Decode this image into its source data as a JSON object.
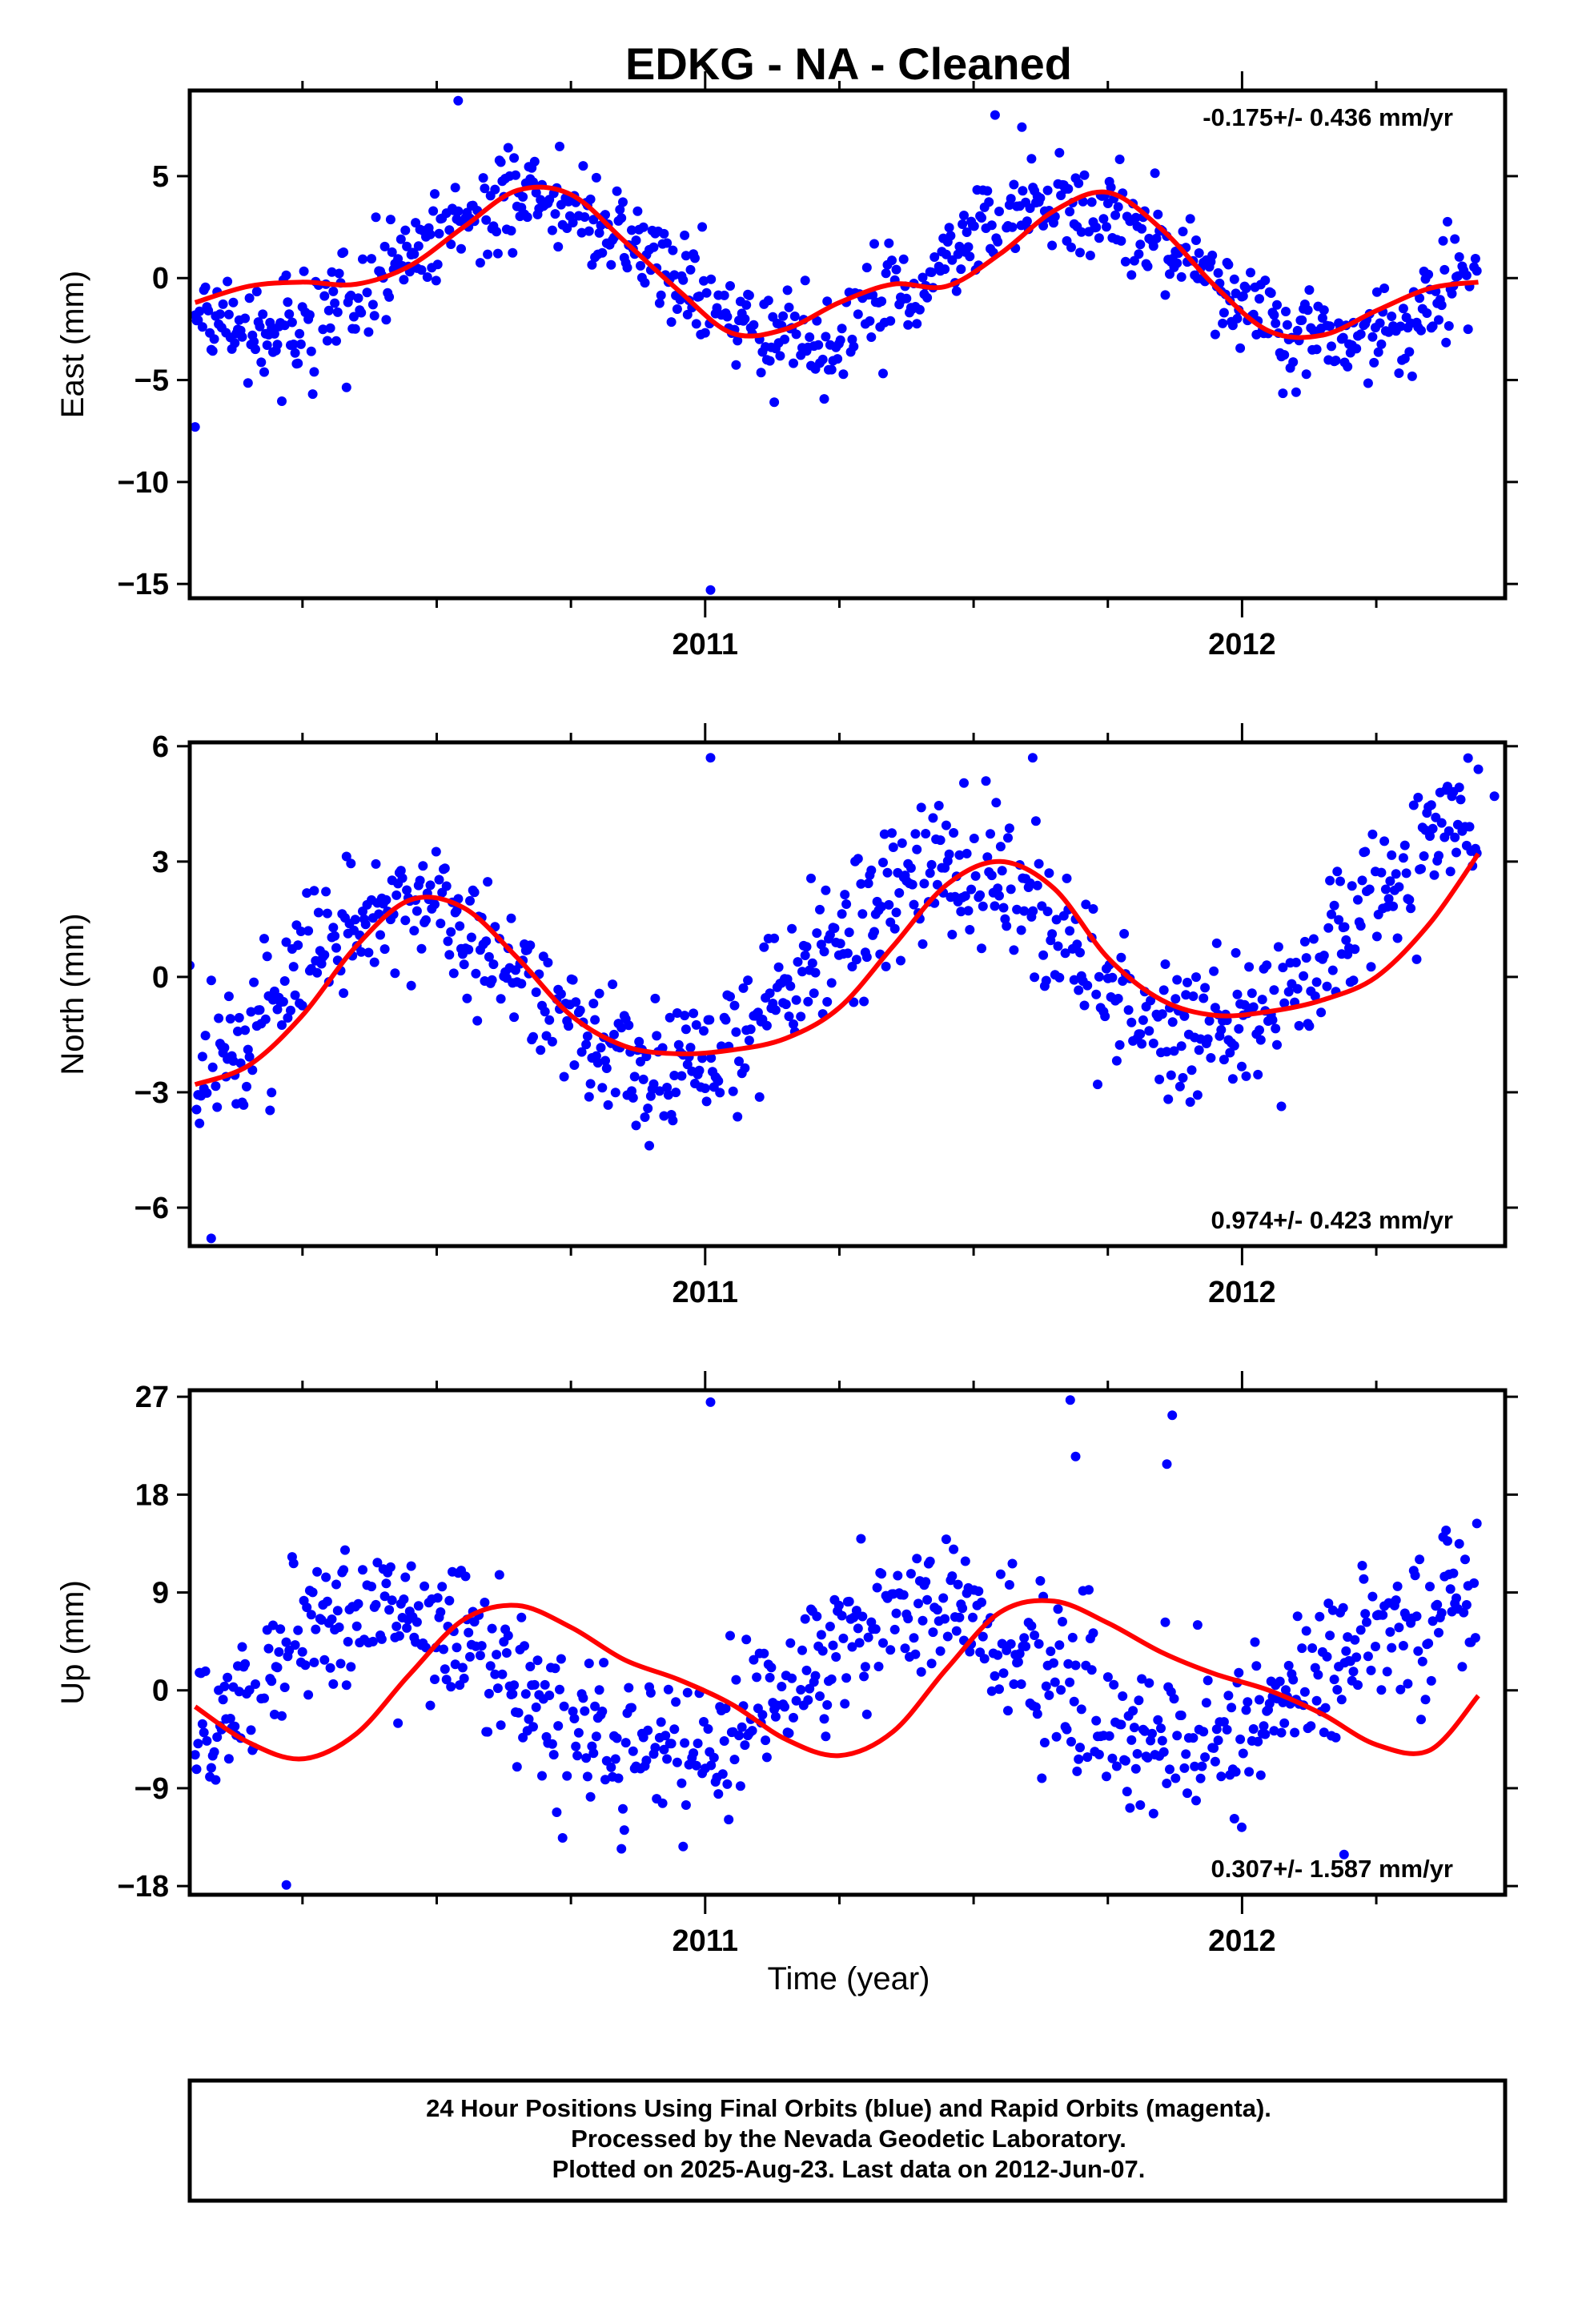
{
  "title": "EDKG  - NA - Cleaned",
  "xlabel": "Time (year)",
  "colors": {
    "points": "#0000ff",
    "fit": "#ff0000",
    "axes": "#000000"
  },
  "footer": {
    "lines": [
      "24 Hour Positions Using Final Orbits (blue) and Rapid Orbits (magenta).",
      "Processed by the Nevada Geodetic Laboratory.",
      "Plotted on 2025-Aug-23. Last data on 2012-Jun-07."
    ]
  },
  "chart_data": [
    {
      "type": "scatter",
      "component": "east",
      "ylabel": "East (mm)",
      "rate_label": "-0.175+/- 0.436 mm/yr",
      "rate_position": "top-right",
      "xlim": [
        2010.04,
        2012.49
      ],
      "ylim": [
        -15.7,
        9.2
      ],
      "yticks": [
        5,
        0,
        -5,
        -10,
        -15
      ],
      "ytick_labels": [
        "5",
        "0",
        "−5",
        "−10",
        "−15"
      ],
      "xticks": [
        2011,
        2012
      ],
      "xtick_labels": [
        "2011",
        "2012"
      ],
      "xminor": [
        2010.25,
        2010.5,
        2010.75,
        2011.25,
        2011.5,
        2011.75,
        2012.25
      ],
      "seasonal_fit": {
        "offset": 0.4,
        "rate": -0.175,
        "ref_epoch": 2011.2,
        "annual_cos": -1.6,
        "annual_sin": -2.88,
        "semiannual_cos": 0.0,
        "semiannual_sin": 0.0,
        "noise_sigma": 1.2
      },
      "outliers": [
        [
          2010.05,
          -7.3
        ],
        [
          2011.01,
          -15.3
        ],
        [
          2010.54,
          8.7
        ],
        [
          2011.54,
          8.0
        ],
        [
          2011.59,
          7.4
        ]
      ],
      "fit_curve_x": [
        2010.05,
        2010.15,
        2010.25,
        2010.35,
        2010.45,
        2010.55,
        2010.65,
        2010.75,
        2010.85,
        2010.95,
        2011.05,
        2011.15,
        2011.25,
        2011.35,
        2011.45,
        2011.55,
        2011.65,
        2011.75,
        2011.85,
        2011.95,
        2012.05,
        2012.15,
        2012.25,
        2012.35,
        2012.44
      ],
      "fit_curve_y": [
        -1.2,
        -0.4,
        -0.2,
        -0.3,
        0.6,
        2.5,
        4.3,
        4.1,
        1.8,
        -0.6,
        -2.7,
        -2.5,
        -1.2,
        -0.3,
        -0.4,
        1.2,
        3.3,
        4.2,
        2.4,
        -0.4,
        -2.6,
        -2.8,
        -1.6,
        -0.5,
        -0.2
      ]
    },
    {
      "type": "scatter",
      "component": "north",
      "ylabel": "North (mm)",
      "rate_label": "0.974+/- 0.423 mm/yr",
      "rate_position": "bottom-right",
      "xlim": [
        2010.04,
        2012.49
      ],
      "ylim": [
        -7.0,
        6.1
      ],
      "yticks": [
        6,
        3,
        0,
        -3,
        -6
      ],
      "ytick_labels": [
        "6",
        "3",
        "0",
        "−3",
        "−6"
      ],
      "xticks": [
        2011,
        2012
      ],
      "xtick_labels": [
        "2011",
        "2012"
      ],
      "xminor": [
        2010.25,
        2010.5,
        2010.75,
        2011.25,
        2011.5,
        2011.75,
        2012.25
      ],
      "seasonal_fit": {
        "offset": 0.2,
        "rate": 0.974,
        "ref_epoch": 2011.2,
        "annual_cos": -2.2,
        "annual_sin": 0.9,
        "semiannual_cos": 0.0,
        "semiannual_sin": 0.0,
        "noise_sigma": 0.9
      },
      "outliers": [
        [
          2011.01,
          5.7
        ],
        [
          2011.61,
          5.7
        ],
        [
          2010.04,
          0.3
        ],
        [
          2010.08,
          -6.8
        ],
        [
          2012.44,
          5.4
        ],
        [
          2012.47,
          4.7
        ]
      ],
      "fit_curve_x": [
        2010.05,
        2010.15,
        2010.25,
        2010.35,
        2010.45,
        2010.55,
        2010.65,
        2010.75,
        2010.85,
        2010.95,
        2011.05,
        2011.15,
        2011.25,
        2011.35,
        2011.45,
        2011.55,
        2011.65,
        2011.75,
        2011.85,
        2011.95,
        2012.05,
        2012.15,
        2012.25,
        2012.35,
        2012.44
      ],
      "fit_curve_y": [
        -2.8,
        -2.3,
        -1.0,
        0.8,
        2.0,
        1.8,
        0.5,
        -1.0,
        -1.8,
        -2.0,
        -1.9,
        -1.6,
        -0.8,
        0.8,
        2.4,
        3.0,
        2.3,
        0.5,
        -0.6,
        -1.0,
        -0.9,
        -0.6,
        0.0,
        1.4,
        3.2
      ]
    },
    {
      "type": "scatter",
      "component": "up",
      "ylabel": "Up (mm)",
      "rate_label": "0.307+/- 1.587 mm/yr",
      "rate_position": "bottom-right",
      "xlim": [
        2010.04,
        2012.49
      ],
      "ylim": [
        -18.8,
        27.6
      ],
      "yticks": [
        27,
        18,
        9,
        0,
        -9,
        -18
      ],
      "ytick_labels": [
        "27",
        "18",
        "9",
        "0",
        "−9",
        "−18"
      ],
      "xticks": [
        2011,
        2012
      ],
      "xtick_labels": [
        "2011",
        "2012"
      ],
      "xminor": [
        2010.25,
        2010.5,
        2010.75,
        2011.25,
        2011.5,
        2011.75,
        2012.25
      ],
      "seasonal_fit": {
        "offset": 0.8,
        "rate": 0.307,
        "ref_epoch": 2011.2,
        "annual_cos": -5.6,
        "annual_sin": 3.8,
        "semiannual_cos": 0.0,
        "semiannual_sin": 0.0,
        "noise_sigma": 3.6
      },
      "outliers": [
        [
          2011.01,
          26.5
        ],
        [
          2011.68,
          26.7
        ],
        [
          2011.87,
          25.3
        ],
        [
          2011.86,
          20.8
        ],
        [
          2011.69,
          21.5
        ],
        [
          2010.22,
          -17.9
        ],
        [
          2012.19,
          -15.1
        ]
      ],
      "fit_curve_x": [
        2010.05,
        2010.15,
        2010.25,
        2010.35,
        2010.45,
        2010.55,
        2010.65,
        2010.75,
        2010.85,
        2010.95,
        2011.05,
        2011.15,
        2011.25,
        2011.35,
        2011.45,
        2011.55,
        2011.65,
        2011.75,
        2011.85,
        2011.95,
        2012.05,
        2012.15,
        2012.25,
        2012.35,
        2012.44
      ],
      "fit_curve_y": [
        -1.5,
        -4.8,
        -6.3,
        -4.0,
        1.5,
        6.5,
        7.8,
        5.8,
        2.8,
        1.0,
        -1.3,
        -4.5,
        -6.0,
        -3.8,
        2.0,
        7.2,
        8.2,
        6.2,
        3.5,
        1.5,
        0.0,
        -2.2,
        -5.0,
        -5.5,
        -0.5
      ]
    }
  ]
}
